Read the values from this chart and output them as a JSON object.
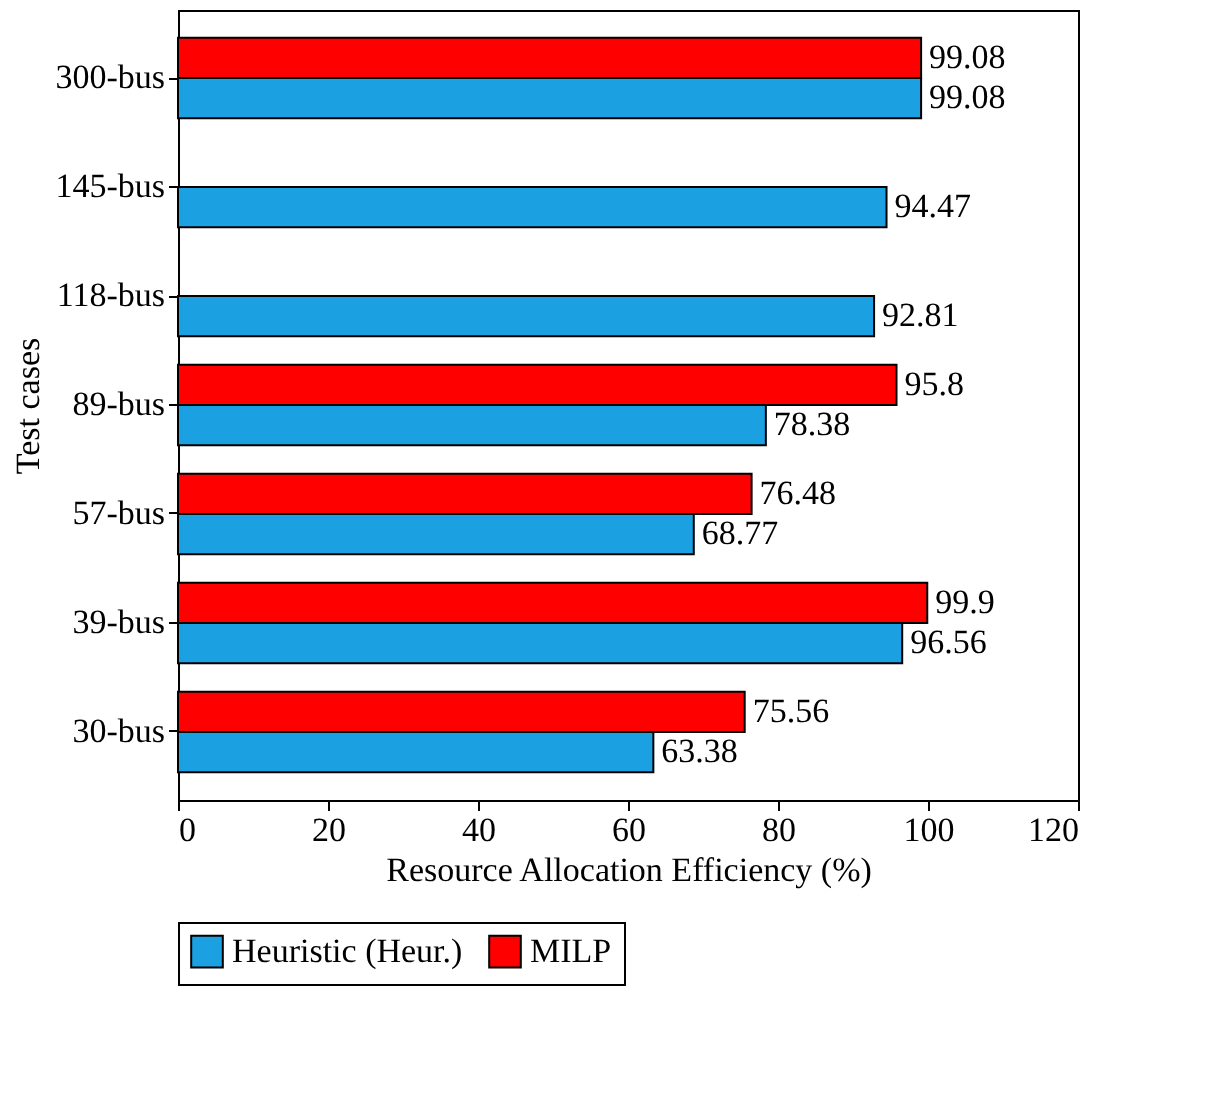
{
  "chart_data": {
    "type": "bar",
    "orientation": "horizontal",
    "xlabel": "Resource Allocation Efficiency (%)",
    "ylabel": "Test cases",
    "categories": [
      "300-bus",
      "145-bus",
      "118-bus",
      "89-bus",
      "57-bus",
      "39-bus",
      "30-bus"
    ],
    "series": [
      {
        "name": "Heuristic (Heur.)",
        "color": "#1ba1e2",
        "values": [
          99.08,
          94.47,
          92.81,
          78.38,
          68.77,
          96.56,
          63.38
        ]
      },
      {
        "name": "MILP",
        "color": "#ff0000",
        "values": [
          99.08,
          null,
          null,
          95.8,
          76.48,
          99.9,
          75.56
        ]
      }
    ],
    "xlim": [
      0,
      120
    ],
    "xticks": [
      0,
      20,
      40,
      60,
      80,
      100,
      120
    ],
    "data_labels": true,
    "legend": "bottom",
    "grid": false
  }
}
